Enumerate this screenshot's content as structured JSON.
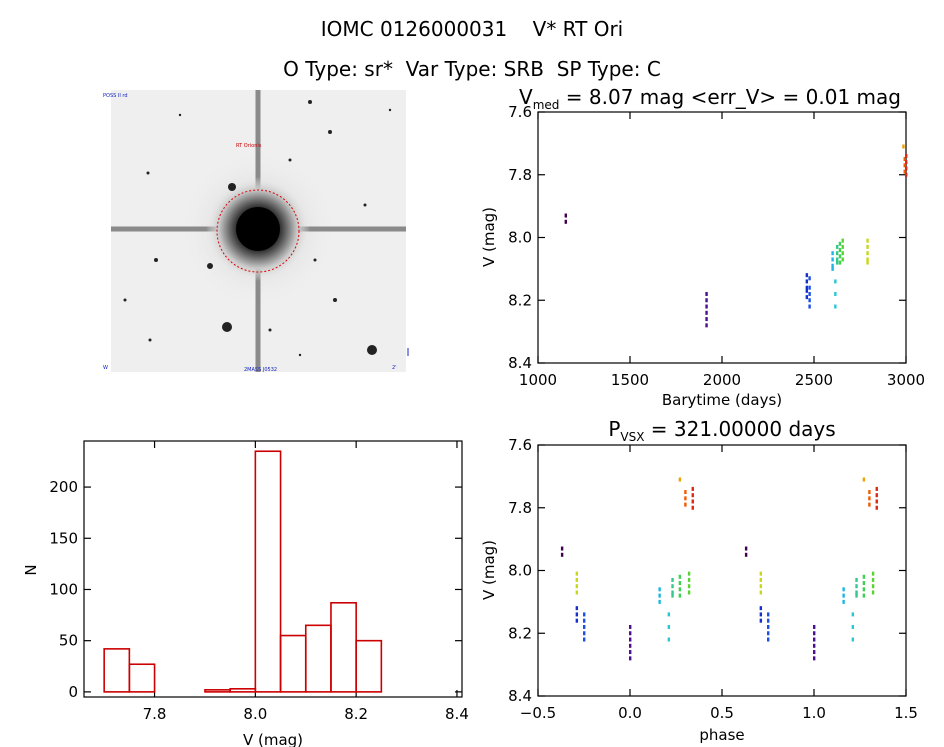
{
  "header": {
    "title": "IOMC 0126000031    V* RT Ori",
    "subtitle": "O Type: sr*  Var Type: SRB  SP Type: C"
  },
  "finder": {
    "labels": {
      "top_left": "POSS II rd",
      "marker": "RT Orionis",
      "bottom_center": "2MASS J0532",
      "bottom_left": "W",
      "bottom_right": "2'"
    }
  },
  "chart_data": [
    {
      "id": "lightcurve",
      "type": "scatter",
      "title_main": "V",
      "title_sub": "med",
      "title_rest": " = 8.07 mag <err_V> = 0.01 mag",
      "xlabel": "Barytime (days)",
      "ylabel": "V (mag)",
      "xlim": [
        1000,
        3000
      ],
      "ylim": [
        8.4,
        7.6
      ],
      "xticks": [
        "1000",
        "1500",
        "2000",
        "2500",
        "3000"
      ],
      "yticks": [
        "7.6",
        "7.8",
        "8.0",
        "8.2",
        "8.4"
      ],
      "groups": [
        {
          "x": 1150,
          "y": [
            7.93,
            7.95
          ],
          "color": "#400050"
        },
        {
          "x": 1915,
          "y": [
            8.18,
            8.2,
            8.22,
            8.24,
            8.26,
            8.28
          ],
          "color": "#4b0f8f"
        },
        {
          "x": 2460,
          "y": [
            8.12,
            8.14,
            8.16,
            8.17,
            8.19
          ],
          "color": "#1430c8"
        },
        {
          "x": 2475,
          "y": [
            8.13,
            8.16,
            8.18,
            8.2,
            8.22
          ],
          "color": "#1a50e8"
        },
        {
          "x": 2600,
          "y": [
            8.05,
            8.07,
            8.09,
            8.1
          ],
          "color": "#1eb4e6"
        },
        {
          "x": 2615,
          "y": [
            8.14,
            8.18,
            8.22
          ],
          "color": "#28c8d2"
        },
        {
          "x": 2625,
          "y": [
            8.03,
            8.05,
            8.07,
            8.08
          ],
          "color": "#32c88c"
        },
        {
          "x": 2640,
          "y": [
            8.02,
            8.04,
            8.06,
            8.08
          ],
          "color": "#3cd24b"
        },
        {
          "x": 2655,
          "y": [
            8.01,
            8.03,
            8.05,
            8.07
          ],
          "color": "#5ad232"
        },
        {
          "x": 2790,
          "y": [
            8.01,
            8.03,
            8.05,
            8.07,
            8.08
          ],
          "color": "#c8d71e"
        },
        {
          "x": 2985,
          "y": [
            7.71
          ],
          "color": "#f0a000"
        },
        {
          "x": 2992,
          "y": [
            7.75,
            7.77,
            7.79
          ],
          "color": "#f05a00"
        },
        {
          "x": 3000,
          "y": [
            7.74,
            7.76,
            7.78,
            7.8
          ],
          "color": "#dc2814"
        }
      ]
    },
    {
      "id": "histogram",
      "type": "bar",
      "xlabel": "V (mag)",
      "ylabel": "N",
      "xlim": [
        7.66,
        8.41
      ],
      "ylim": [
        -5,
        245
      ],
      "xticks": [
        "7.8",
        "8.0",
        "8.2",
        "8.4"
      ],
      "yticks": [
        "0",
        "50",
        "100",
        "150",
        "200"
      ],
      "bin_width": 0.05,
      "bins": [
        {
          "left": 7.7,
          "count": 42
        },
        {
          "left": 7.75,
          "count": 27
        },
        {
          "left": 7.8,
          "count": 0
        },
        {
          "left": 7.85,
          "count": 0
        },
        {
          "left": 7.9,
          "count": 2
        },
        {
          "left": 7.95,
          "count": 3
        },
        {
          "left": 8.0,
          "count": 235
        },
        {
          "left": 8.05,
          "count": 55
        },
        {
          "left": 8.1,
          "count": 65
        },
        {
          "left": 8.15,
          "count": 87
        },
        {
          "left": 8.2,
          "count": 50
        }
      ],
      "color": "#cc0000"
    },
    {
      "id": "phased",
      "type": "scatter",
      "title_main": "P",
      "title_sub": "VSX",
      "title_rest": " = 321.00000 days",
      "xlabel": "phase",
      "ylabel": "V (mag)",
      "xlim": [
        -0.5,
        1.5
      ],
      "ylim": [
        8.4,
        7.6
      ],
      "xticks": [
        "−0.5",
        "0.0",
        "0.5",
        "1.0",
        "1.5"
      ],
      "yticks": [
        "7.6",
        "7.8",
        "8.0",
        "8.2",
        "8.4"
      ],
      "groups": [
        {
          "x": -0.37,
          "y": [
            7.93,
            7.95
          ],
          "color": "#400050"
        },
        {
          "x": 0.0,
          "y": [
            8.18,
            8.2,
            8.22,
            8.24,
            8.26,
            8.28
          ],
          "color": "#4b0f8f"
        },
        {
          "x": -0.29,
          "y": [
            8.12,
            8.14,
            8.16
          ],
          "color": "#1430c8"
        },
        {
          "x": -0.25,
          "y": [
            8.14,
            8.16,
            8.18,
            8.2,
            8.22
          ],
          "color": "#1a50e8"
        },
        {
          "x": 0.16,
          "y": [
            8.06,
            8.08,
            8.1
          ],
          "color": "#1eb4e6"
        },
        {
          "x": 0.21,
          "y": [
            8.14,
            8.18,
            8.22
          ],
          "color": "#28c8d2"
        },
        {
          "x": 0.23,
          "y": [
            8.03,
            8.05,
            8.07,
            8.08
          ],
          "color": "#32c88c"
        },
        {
          "x": 0.27,
          "y": [
            8.02,
            8.04,
            8.06,
            8.08
          ],
          "color": "#3cd24b"
        },
        {
          "x": 0.32,
          "y": [
            8.01,
            8.03,
            8.05,
            8.07
          ],
          "color": "#5ad232"
        },
        {
          "x": -0.29,
          "y": [
            8.01,
            8.03,
            8.05,
            8.07
          ],
          "color": "#c8d71e"
        },
        {
          "x": 0.27,
          "y": [
            7.71
          ],
          "color": "#f0a000"
        },
        {
          "x": 0.3,
          "y": [
            7.75,
            7.77,
            7.79
          ],
          "color": "#f05a00"
        },
        {
          "x": 0.34,
          "y": [
            7.74,
            7.76,
            7.78,
            7.8
          ],
          "color": "#dc2814"
        },
        {
          "x": 0.63,
          "y": [
            7.93,
            7.95
          ],
          "color": "#400050"
        },
        {
          "x": 1.0,
          "y": [
            8.18,
            8.2,
            8.22,
            8.24,
            8.26,
            8.28
          ],
          "color": "#4b0f8f"
        },
        {
          "x": 0.71,
          "y": [
            8.12,
            8.14,
            8.16
          ],
          "color": "#1430c8"
        },
        {
          "x": 0.75,
          "y": [
            8.14,
            8.16,
            8.18,
            8.2,
            8.22
          ],
          "color": "#1a50e8"
        },
        {
          "x": 1.16,
          "y": [
            8.06,
            8.08,
            8.1
          ],
          "color": "#1eb4e6"
        },
        {
          "x": 1.21,
          "y": [
            8.14,
            8.18,
            8.22
          ],
          "color": "#28c8d2"
        },
        {
          "x": 1.23,
          "y": [
            8.03,
            8.05,
            8.07,
            8.08
          ],
          "color": "#32c88c"
        },
        {
          "x": 1.27,
          "y": [
            8.02,
            8.04,
            8.06,
            8.08
          ],
          "color": "#3cd24b"
        },
        {
          "x": 1.32,
          "y": [
            8.01,
            8.03,
            8.05,
            8.07
          ],
          "color": "#5ad232"
        },
        {
          "x": 0.71,
          "y": [
            8.01,
            8.03,
            8.05,
            8.07
          ],
          "color": "#c8d71e"
        },
        {
          "x": 1.27,
          "y": [
            7.71
          ],
          "color": "#f0a000"
        },
        {
          "x": 1.3,
          "y": [
            7.75,
            7.77,
            7.79
          ],
          "color": "#f05a00"
        },
        {
          "x": 1.34,
          "y": [
            7.74,
            7.76,
            7.78,
            7.8
          ],
          "color": "#dc2814"
        }
      ]
    }
  ]
}
